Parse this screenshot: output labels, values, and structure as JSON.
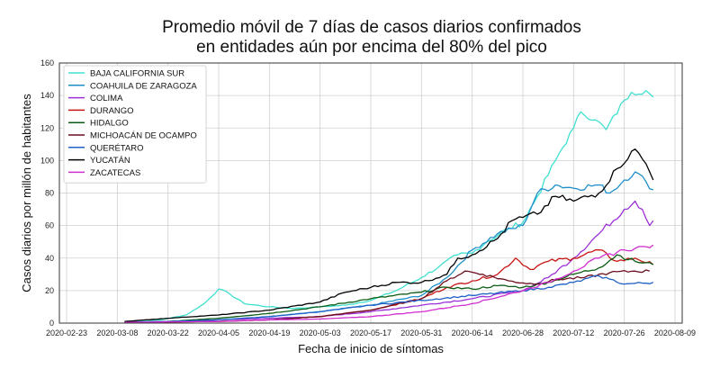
{
  "chart_data": {
    "type": "line",
    "title_line1": "Promedio móvil de 7 días de casos diarios confirmados",
    "title_line2": "en entidades aún por encima del 80% del pico",
    "xlabel": "Fecha de inicio de síntomas",
    "ylabel": "Casos diarios por millón de habitantes",
    "ylim": [
      0,
      160
    ],
    "yticks": [
      0,
      20,
      40,
      60,
      80,
      100,
      120,
      140,
      160
    ],
    "xlim": [
      "2020-02-21",
      "2020-08-11"
    ],
    "xticks": [
      "2020-02-23",
      "2020-03-08",
      "2020-03-22",
      "2020-04-05",
      "2020-04-19",
      "2020-05-03",
      "2020-05-17",
      "2020-05-31",
      "2020-06-14",
      "2020-06-28",
      "2020-07-12",
      "2020-07-26",
      "2020-08-09"
    ],
    "grid": true,
    "legend_position": "top-left",
    "series": [
      {
        "name": "BAJA CALIFORNIA SUR",
        "color": "#40e0d0",
        "points": [
          [
            "2020-03-10",
            1
          ],
          [
            "2020-03-20",
            2
          ],
          [
            "2020-03-27",
            5
          ],
          [
            "2020-04-01",
            12
          ],
          [
            "2020-04-05",
            21
          ],
          [
            "2020-04-08",
            18
          ],
          [
            "2020-04-12",
            12
          ],
          [
            "2020-04-19",
            10
          ],
          [
            "2020-04-26",
            9
          ],
          [
            "2020-05-03",
            10
          ],
          [
            "2020-05-10",
            11
          ],
          [
            "2020-05-17",
            14
          ],
          [
            "2020-05-24",
            20
          ],
          [
            "2020-05-31",
            28
          ],
          [
            "2020-06-05",
            35
          ],
          [
            "2020-06-10",
            42
          ],
          [
            "2020-06-14",
            43
          ],
          [
            "2020-06-18",
            50
          ],
          [
            "2020-06-24",
            58
          ],
          [
            "2020-06-28",
            62
          ],
          [
            "2020-07-02",
            78
          ],
          [
            "2020-07-07",
            100
          ],
          [
            "2020-07-12",
            120
          ],
          [
            "2020-07-14",
            130
          ],
          [
            "2020-07-18",
            125
          ],
          [
            "2020-07-21",
            119
          ],
          [
            "2020-07-26",
            137
          ],
          [
            "2020-07-28",
            142
          ],
          [
            "2020-08-01",
            143
          ],
          [
            "2020-08-03",
            139
          ]
        ]
      },
      {
        "name": "COAHUILA DE ZARAGOZA",
        "color": "#1f8fc9",
        "points": [
          [
            "2020-03-10",
            0.5
          ],
          [
            "2020-03-22",
            1
          ],
          [
            "2020-04-05",
            2
          ],
          [
            "2020-04-19",
            4
          ],
          [
            "2020-05-03",
            7
          ],
          [
            "2020-05-17",
            11
          ],
          [
            "2020-05-31",
            17
          ],
          [
            "2020-06-07",
            28
          ],
          [
            "2020-06-14",
            45
          ],
          [
            "2020-06-21",
            55
          ],
          [
            "2020-06-28",
            60
          ],
          [
            "2020-07-02",
            80
          ],
          [
            "2020-07-07",
            85
          ],
          [
            "2020-07-12",
            83
          ],
          [
            "2020-07-19",
            85
          ],
          [
            "2020-07-22",
            80
          ],
          [
            "2020-07-26",
            88
          ],
          [
            "2020-07-29",
            93
          ],
          [
            "2020-08-01",
            87
          ],
          [
            "2020-08-03",
            82
          ]
        ]
      },
      {
        "name": "COLIMA",
        "color": "#9b30d9",
        "points": [
          [
            "2020-03-10",
            0.5
          ],
          [
            "2020-03-22",
            1
          ],
          [
            "2020-04-05",
            2
          ],
          [
            "2020-04-19",
            3
          ],
          [
            "2020-05-03",
            4
          ],
          [
            "2020-05-17",
            7
          ],
          [
            "2020-05-31",
            11
          ],
          [
            "2020-06-14",
            15
          ],
          [
            "2020-06-28",
            20
          ],
          [
            "2020-07-05",
            28
          ],
          [
            "2020-07-12",
            40
          ],
          [
            "2020-07-19",
            55
          ],
          [
            "2020-07-26",
            70
          ],
          [
            "2020-07-29",
            75
          ],
          [
            "2020-07-31",
            70
          ],
          [
            "2020-08-02",
            60
          ],
          [
            "2020-08-03",
            63
          ]
        ]
      },
      {
        "name": "DURANGO",
        "color": "#c81414",
        "points": [
          [
            "2020-03-10",
            0.5
          ],
          [
            "2020-04-05",
            1
          ],
          [
            "2020-04-19",
            2
          ],
          [
            "2020-05-03",
            4
          ],
          [
            "2020-05-17",
            8
          ],
          [
            "2020-05-31",
            15
          ],
          [
            "2020-06-07",
            22
          ],
          [
            "2020-06-14",
            26
          ],
          [
            "2020-06-21",
            30
          ],
          [
            "2020-06-26",
            40
          ],
          [
            "2020-06-30",
            33
          ],
          [
            "2020-07-05",
            38
          ],
          [
            "2020-07-12",
            40
          ],
          [
            "2020-07-19",
            45
          ],
          [
            "2020-07-24",
            38
          ],
          [
            "2020-07-29",
            40
          ],
          [
            "2020-08-03",
            36
          ]
        ]
      },
      {
        "name": "HIDALGO",
        "color": "#0a5c14",
        "points": [
          [
            "2020-03-10",
            0.5
          ],
          [
            "2020-03-22",
            1
          ],
          [
            "2020-04-05",
            3
          ],
          [
            "2020-04-19",
            6
          ],
          [
            "2020-05-03",
            10
          ],
          [
            "2020-05-17",
            15
          ],
          [
            "2020-05-31",
            19
          ],
          [
            "2020-06-07",
            22
          ],
          [
            "2020-06-14",
            21
          ],
          [
            "2020-06-21",
            23
          ],
          [
            "2020-06-28",
            22
          ],
          [
            "2020-07-05",
            25
          ],
          [
            "2020-07-12",
            30
          ],
          [
            "2020-07-19",
            34
          ],
          [
            "2020-07-24",
            42
          ],
          [
            "2020-07-29",
            38
          ],
          [
            "2020-08-03",
            36
          ]
        ]
      },
      {
        "name": "MICHOACÁN DE OCAMPO",
        "color": "#6b0f1f",
        "points": [
          [
            "2020-03-10",
            0.5
          ],
          [
            "2020-04-05",
            1
          ],
          [
            "2020-04-19",
            2
          ],
          [
            "2020-05-03",
            4
          ],
          [
            "2020-05-17",
            8
          ],
          [
            "2020-05-31",
            15
          ],
          [
            "2020-06-07",
            26
          ],
          [
            "2020-06-12",
            32
          ],
          [
            "2020-06-17",
            30
          ],
          [
            "2020-06-24",
            26
          ],
          [
            "2020-07-01",
            24
          ],
          [
            "2020-07-08",
            27
          ],
          [
            "2020-07-15",
            28
          ],
          [
            "2020-07-22",
            31
          ],
          [
            "2020-07-29",
            32
          ],
          [
            "2020-08-02",
            32
          ]
        ]
      },
      {
        "name": "QUERÉTARO",
        "color": "#2060c8",
        "points": [
          [
            "2020-03-10",
            0.5
          ],
          [
            "2020-03-22",
            1
          ],
          [
            "2020-04-05",
            2
          ],
          [
            "2020-04-19",
            4
          ],
          [
            "2020-05-03",
            7
          ],
          [
            "2020-05-17",
            11
          ],
          [
            "2020-05-31",
            14
          ],
          [
            "2020-06-14",
            17
          ],
          [
            "2020-06-28",
            20
          ],
          [
            "2020-07-05",
            22
          ],
          [
            "2020-07-12",
            25
          ],
          [
            "2020-07-19",
            29
          ],
          [
            "2020-07-22",
            27
          ],
          [
            "2020-07-26",
            24
          ],
          [
            "2020-08-03",
            25
          ]
        ]
      },
      {
        "name": "YUCATÁN",
        "color": "#000000",
        "points": [
          [
            "2020-03-10",
            1
          ],
          [
            "2020-03-22",
            3
          ],
          [
            "2020-04-05",
            5
          ],
          [
            "2020-04-19",
            8
          ],
          [
            "2020-05-03",
            13
          ],
          [
            "2020-05-10",
            19
          ],
          [
            "2020-05-17",
            22
          ],
          [
            "2020-05-24",
            25
          ],
          [
            "2020-05-31",
            25
          ],
          [
            "2020-06-07",
            30
          ],
          [
            "2020-06-10",
            40
          ],
          [
            "2020-06-14",
            42
          ],
          [
            "2020-06-21",
            52
          ],
          [
            "2020-06-25",
            63
          ],
          [
            "2020-06-28",
            65
          ],
          [
            "2020-07-02",
            67
          ],
          [
            "2020-07-07",
            78
          ],
          [
            "2020-07-12",
            75
          ],
          [
            "2020-07-19",
            80
          ],
          [
            "2020-07-24",
            95
          ],
          [
            "2020-07-29",
            107
          ],
          [
            "2020-08-01",
            98
          ],
          [
            "2020-08-03",
            88
          ]
        ]
      },
      {
        "name": "ZACATECAS",
        "color": "#d02fd0",
        "points": [
          [
            "2020-03-10",
            0.5
          ],
          [
            "2020-04-05",
            1
          ],
          [
            "2020-04-19",
            2
          ],
          [
            "2020-05-03",
            2.5
          ],
          [
            "2020-05-17",
            4
          ],
          [
            "2020-05-31",
            7
          ],
          [
            "2020-06-14",
            12
          ],
          [
            "2020-06-28",
            20
          ],
          [
            "2020-07-05",
            25
          ],
          [
            "2020-07-12",
            32
          ],
          [
            "2020-07-19",
            40
          ],
          [
            "2020-07-26",
            45
          ],
          [
            "2020-07-29",
            46
          ],
          [
            "2020-08-01",
            47
          ],
          [
            "2020-08-03",
            48
          ]
        ]
      }
    ]
  }
}
